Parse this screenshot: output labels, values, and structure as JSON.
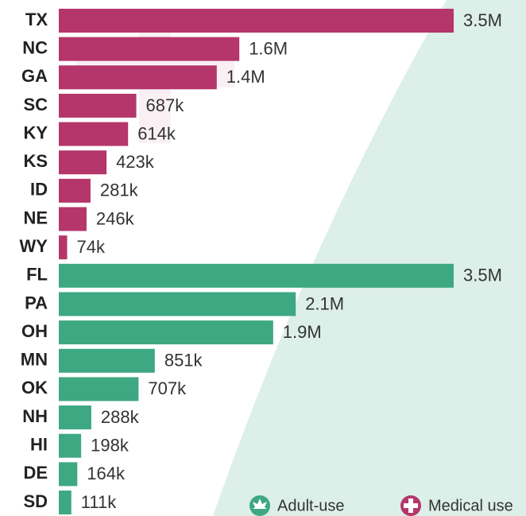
{
  "chart_data": {
    "type": "bar",
    "orientation": "horizontal",
    "categories": [
      "TX",
      "NC",
      "GA",
      "SC",
      "KY",
      "KS",
      "ID",
      "NE",
      "WY",
      "FL",
      "PA",
      "OH",
      "MN",
      "OK",
      "NH",
      "HI",
      "DE",
      "SD"
    ],
    "series": [
      {
        "name": "Adult-use",
        "color": "#3da882",
        "values": [
          null,
          null,
          null,
          null,
          null,
          null,
          null,
          null,
          null,
          3500000,
          2100000,
          1900000,
          851000,
          707000,
          288000,
          198000,
          164000,
          111000
        ],
        "value_labels": [
          null,
          null,
          null,
          null,
          null,
          null,
          null,
          null,
          null,
          "3.5M",
          "2.1M",
          "1.9M",
          "851k",
          "707k",
          "288k",
          "198k",
          "164k",
          "111k"
        ]
      },
      {
        "name": "Medical use",
        "color": "#b5366b",
        "values": [
          3500000,
          1600000,
          1400000,
          687000,
          614000,
          423000,
          281000,
          246000,
          74000,
          null,
          null,
          null,
          null,
          null,
          null,
          null,
          null,
          null
        ],
        "value_labels": [
          "3.5M",
          "1.6M",
          "1.4M",
          "687k",
          "614k",
          "423k",
          "281k",
          "246k",
          "74k",
          null,
          null,
          null,
          null,
          null,
          null,
          null,
          null,
          null
        ]
      }
    ]
  }
}
